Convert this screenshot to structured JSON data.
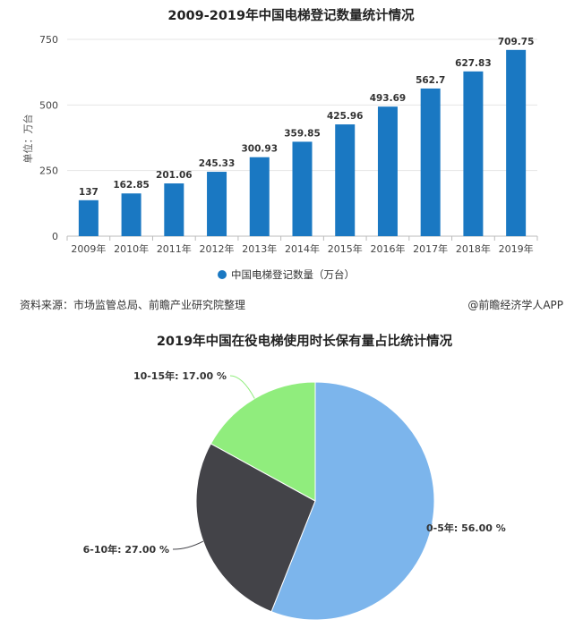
{
  "chart_data": [
    {
      "type": "bar",
      "title": "2009-2019年中国电梯登记数量统计情况",
      "ylabel": "单位：万台",
      "ylim": [
        0,
        750
      ],
      "yticks": [
        0,
        250,
        500,
        750
      ],
      "grid": true,
      "legend_position": "bottom",
      "color": "#1a78c2",
      "categories": [
        "2009年",
        "2010年",
        "2011年",
        "2012年",
        "2013年",
        "2014年",
        "2015年",
        "2016年",
        "2017年",
        "2018年",
        "2019年"
      ],
      "series": [
        {
          "name": "中国电梯登记数量（万台）",
          "values": [
            137,
            162.85,
            201.06,
            245.33,
            300.93,
            359.85,
            425.96,
            493.69,
            562.7,
            627.83,
            709.75
          ]
        }
      ]
    },
    {
      "type": "pie",
      "title": "2019年中国在役电梯使用时长保有量占比统计情况",
      "slices": [
        {
          "label": "0-5年: 56.00 %",
          "value": 56.0,
          "color": "#7cb5ec"
        },
        {
          "label": "6-10年: 27.00 %",
          "value": 27.0,
          "color": "#434348"
        },
        {
          "label": "10-15年: 17.00 %",
          "value": 17.0,
          "color": "#90ed7d"
        }
      ]
    }
  ],
  "source": {
    "left": "资料来源：市场监管总局、前瞻产业研究院整理",
    "right": "@前瞻经济学人APP"
  }
}
